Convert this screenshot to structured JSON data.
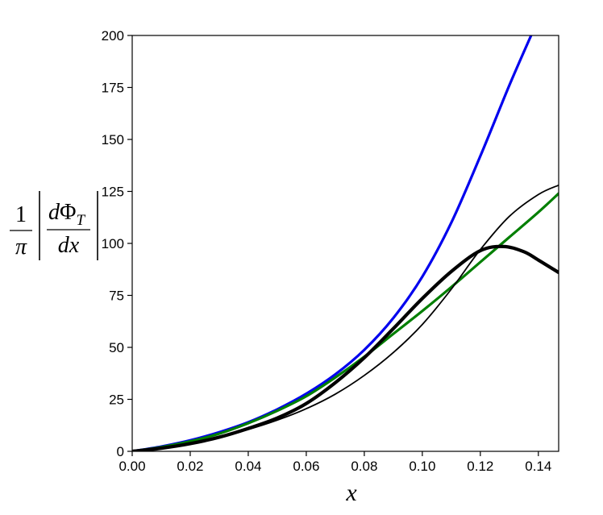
{
  "chart_data": {
    "type": "line",
    "title": "",
    "xlabel": "x",
    "ylabel": {
      "numerator": "1",
      "denominator": "π",
      "inner_numerator_d": "d",
      "inner_numerator_symbol": "Φ",
      "inner_numerator_subscript": "T",
      "inner_denominator": "dx"
    },
    "xlim": [
      0.0,
      0.147
    ],
    "ylim": [
      0,
      200
    ],
    "x_ticks": [
      0.0,
      0.02,
      0.04,
      0.06,
      0.08,
      0.1,
      0.12,
      0.14
    ],
    "x_tick_labels": [
      "0.00",
      "0.02",
      "0.04",
      "0.06",
      "0.08",
      "0.10",
      "0.12",
      "0.14"
    ],
    "y_ticks": [
      0,
      25,
      50,
      75,
      100,
      125,
      150,
      175,
      200
    ],
    "y_tick_labels": [
      "0",
      "25",
      "50",
      "75",
      "100",
      "125",
      "150",
      "175",
      "200"
    ],
    "grid": false,
    "legend": "none",
    "series": [
      {
        "color": "#0000ee",
        "line_style": "medium",
        "x": [
          0.0,
          0.01,
          0.02,
          0.03,
          0.04,
          0.05,
          0.06,
          0.07,
          0.08,
          0.09,
          0.1,
          0.11,
          0.12,
          0.13,
          0.1375
        ],
        "y": [
          0,
          2.3,
          5.3,
          9.2,
          14.0,
          20.2,
          27.7,
          37.0,
          48.8,
          64.1,
          84.0,
          110.0,
          142.0,
          176.0,
          200.0
        ]
      },
      {
        "color": "#007f00",
        "line_style": "medium",
        "x": [
          0.0,
          0.01,
          0.02,
          0.03,
          0.04,
          0.05,
          0.06,
          0.07,
          0.08,
          0.09,
          0.1,
          0.11,
          0.12,
          0.13,
          0.14,
          0.147
        ],
        "y": [
          0,
          2.0,
          4.8,
          8.5,
          13.5,
          19.5,
          26.5,
          35.5,
          45.5,
          56.5,
          67.5,
          79.0,
          91.0,
          103.0,
          115.0,
          124.0
        ]
      },
      {
        "color": "#000000",
        "line_style": "thick",
        "x": [
          0.0,
          0.01,
          0.02,
          0.03,
          0.04,
          0.05,
          0.06,
          0.07,
          0.08,
          0.09,
          0.1,
          0.11,
          0.12,
          0.128,
          0.135,
          0.14,
          0.147
        ],
        "y": [
          0,
          1.5,
          3.7,
          6.8,
          11.0,
          16.0,
          23.0,
          33.0,
          45.0,
          59.0,
          73.5,
          86.5,
          96.5,
          98.5,
          96.0,
          92.0,
          86.0
        ]
      },
      {
        "color": "#000000",
        "line_style": "thin",
        "x": [
          0.0,
          0.01,
          0.02,
          0.03,
          0.04,
          0.05,
          0.06,
          0.07,
          0.08,
          0.09,
          0.1,
          0.11,
          0.12,
          0.13,
          0.14,
          0.147
        ],
        "y": [
          0,
          1.5,
          3.8,
          6.8,
          10.5,
          15.0,
          20.5,
          27.5,
          36.5,
          47.5,
          61.0,
          78.0,
          97.0,
          113.0,
          123.5,
          128.0
        ]
      }
    ]
  }
}
